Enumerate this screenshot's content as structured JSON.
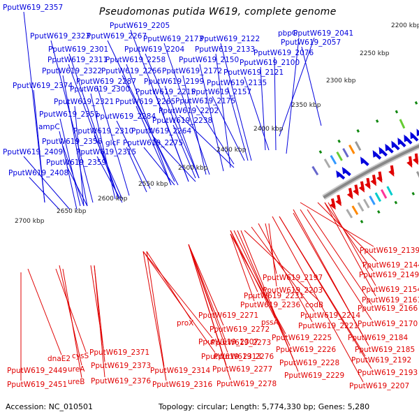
{
  "title": "Pseudomonas putida W619, complete genome",
  "footer": {
    "accession": "Accession: NC_010501",
    "summary": "Topology: circular; Length: 5,774,330 bp; Genes: 5,280"
  },
  "genome": {
    "accession": "NC_010501",
    "topology": "circular",
    "length_bp": 5774330,
    "genes": 5280,
    "visible_range_kbp": [
      2200,
      2700
    ]
  },
  "ticks": [
    {
      "label": "2200 kbp",
      "kbp": 2200
    },
    {
      "label": "2250 kbp",
      "kbp": 2250
    },
    {
      "label": "2300 kbp",
      "kbp": 2300
    },
    {
      "label": "2350 kbp",
      "kbp": 2350
    },
    {
      "label": "2400 kbp",
      "kbp": 2400
    },
    {
      "label": "2450 kbp",
      "kbp": 2450
    },
    {
      "label": "2500 kbp",
      "kbp": 2500
    },
    {
      "label": "2550 kbp",
      "kbp": 2550
    },
    {
      "label": "2600 kbp",
      "kbp": 2600
    },
    {
      "label": "2650 kbp",
      "kbp": 2650
    },
    {
      "label": "2700 kbp",
      "kbp": 2700
    }
  ],
  "colors": {
    "forward_strand": "#0000dd",
    "reverse_strand": "#e00000",
    "backbone": "#888888",
    "marker": "#118811"
  },
  "forward_labels": [
    "PputW619_2357",
    "PputW619_2205",
    "PputW619_2323",
    "PputW619_2267",
    "PputW619_2173",
    "PputW619_2122",
    "pbpG",
    "PputW619_2041",
    "PputW619_2057",
    "PputW619_2301",
    "PputW619_2204",
    "PputW619_2133",
    "PputW619_2076",
    "PputW619_2311",
    "PputW619_2258",
    "PputW619_2150",
    "PputW619_2100",
    "PputW619_2322",
    "PputW619_2266",
    "PputW619_2172",
    "PputW619_2121",
    "PputW619_2287",
    "PputW619_2199",
    "PputW619_2135",
    "PputW619_2374",
    "PputW619_2300",
    "PputW619_2215",
    "PputW619_2157",
    "PputW619_2321",
    "PputW619_2265",
    "PputW619_2175",
    "PputW619_2202",
    "PputW619_2351",
    "PputW619_2284",
    "PputW619_2238",
    "ampC",
    "PputW619_2310",
    "PputW619_2264",
    "PputW619_2356",
    "glcF",
    "PputW619_2275",
    "PputW619_2409",
    "PputW619_2315",
    "PputW619_2359",
    "PputW619_2408"
  ],
  "reverse_labels": [
    "PputW619_2139",
    "PputW619_2144",
    "PputW619_2197",
    "PputW619_2149",
    "PputW619_2203",
    "PputW619_2154",
    "PputW619_2231",
    "PputW619_2161",
    "PputW619_2236",
    "codB",
    "PputW619_2166",
    "PputW619_2214",
    "PputW619_2271",
    "pssA",
    "PputW619_2221",
    "PputW619_2170",
    "proX",
    "PputW619_2272",
    "PputW619_2225",
    "PputW619_2184",
    "PputW619_2307",
    "PputW619_2273",
    "PputW619_2226",
    "PputW619_2185",
    "dnaE2",
    "cysS",
    "PputW619_2371",
    "PputW619_2313",
    "PputW619_2276",
    "PputW619_2228",
    "PputW619_2192",
    "PputW619_2449",
    "ureA",
    "PputW619_2373",
    "PputW619_2314",
    "PputW619_2277",
    "PputW619_2229",
    "PputW619_2193",
    "PputW619_2451",
    "ureB",
    "PputW619_2376",
    "PputW619_2316",
    "PputW619_2278",
    "PputW619_2207"
  ]
}
